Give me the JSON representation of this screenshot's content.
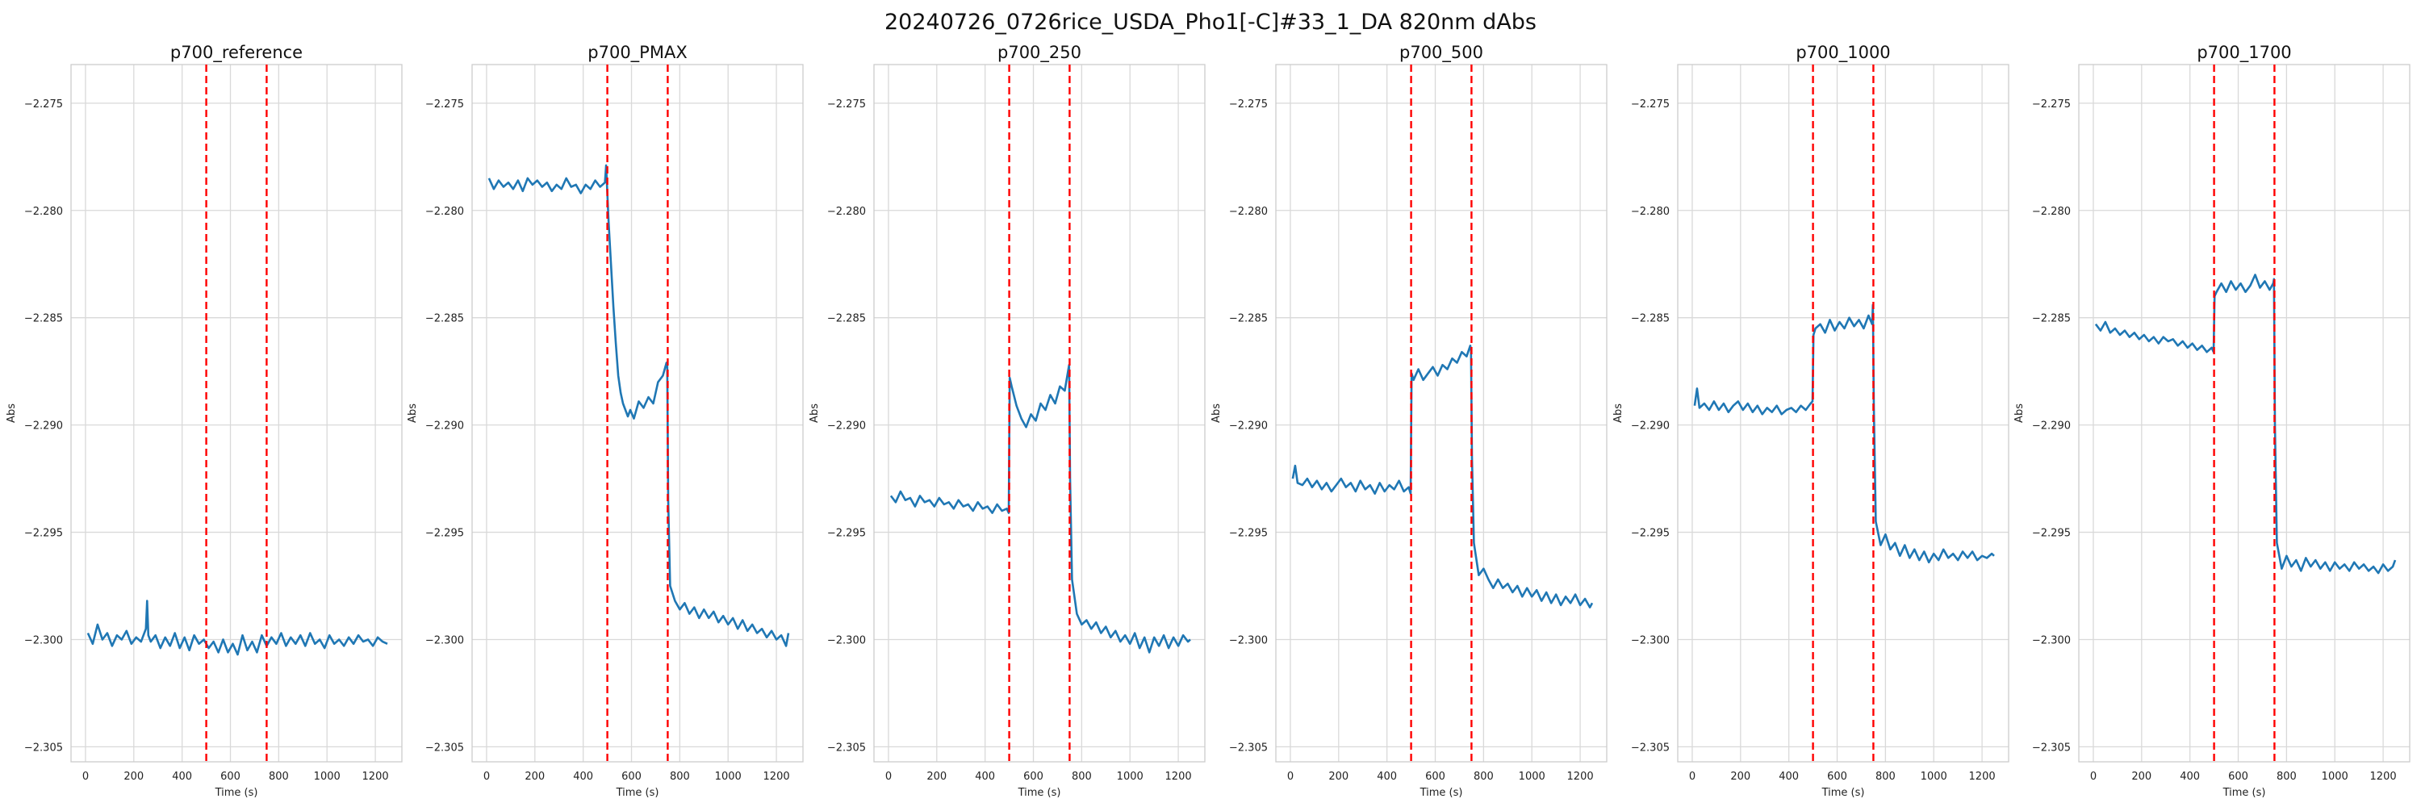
{
  "figure_title": "20240726_0726rice_USDA_Pho1[-C]#33_1_DA 820nm dAbs",
  "colors": {
    "series": "#1f77b4",
    "marker": "#ff0000",
    "grid": "#d9d9d9",
    "spine": "#cccccc"
  },
  "chart_data": [
    {
      "type": "line",
      "title": "p700_reference",
      "xlabel": "Time (s)",
      "ylabel": "Abs",
      "xlim": [
        -60,
        1310
      ],
      "ylim": [
        -2.3057,
        -2.2732
      ],
      "xticks": [
        0,
        200,
        400,
        600,
        800,
        1000,
        1200
      ],
      "yticks": [
        -2.275,
        -2.28,
        -2.285,
        -2.29,
        -2.295,
        -2.3,
        -2.305
      ],
      "vlines": [
        500,
        750
      ],
      "grid": true,
      "series": [
        {
          "x": [
            10,
            30,
            50,
            70,
            90,
            110,
            130,
            150,
            170,
            190,
            210,
            230,
            250,
            255,
            260,
            270,
            290,
            310,
            330,
            350,
            370,
            390,
            410,
            430,
            450,
            470,
            490,
            510,
            530,
            550,
            570,
            590,
            610,
            630,
            650,
            670,
            690,
            710,
            730,
            750,
            770,
            790,
            810,
            830,
            850,
            870,
            890,
            910,
            930,
            950,
            970,
            990,
            1010,
            1030,
            1050,
            1070,
            1090,
            1110,
            1130,
            1150,
            1170,
            1190,
            1210,
            1230,
            1250
          ],
          "y": [
            -2.2997,
            -2.3002,
            -2.2993,
            -2.3,
            -2.2997,
            -2.3003,
            -2.2998,
            -2.3,
            -2.2996,
            -2.3002,
            -2.2999,
            -2.3001,
            -2.2995,
            -2.2982,
            -2.2998,
            -2.3001,
            -2.2998,
            -2.3004,
            -2.2999,
            -2.3003,
            -2.2997,
            -2.3004,
            -2.2999,
            -2.3005,
            -2.2998,
            -2.3002,
            -2.3,
            -2.3004,
            -2.3001,
            -2.3006,
            -2.3,
            -2.3006,
            -2.3002,
            -2.3007,
            -2.2998,
            -2.3005,
            -2.3001,
            -2.3006,
            -2.2998,
            -2.3003,
            -2.2999,
            -2.3002,
            -2.2997,
            -2.3003,
            -2.2999,
            -2.3002,
            -2.2998,
            -2.3003,
            -2.2997,
            -2.3002,
            -2.3,
            -2.3004,
            -2.2998,
            -2.3002,
            -2.3,
            -2.3003,
            -2.2999,
            -2.3002,
            -2.2998,
            -2.3001,
            -2.3,
            -2.3003,
            -2.2999,
            -2.3001,
            -2.3002
          ]
        }
      ]
    },
    {
      "type": "line",
      "title": "p700_PMAX",
      "xlabel": "Time (s)",
      "ylabel": "Abs",
      "xlim": [
        -60,
        1310
      ],
      "ylim": [
        -2.3057,
        -2.2732
      ],
      "xticks": [
        0,
        200,
        400,
        600,
        800,
        1000,
        1200
      ],
      "yticks": [
        -2.275,
        -2.28,
        -2.285,
        -2.29,
        -2.295,
        -2.3,
        -2.305
      ],
      "vlines": [
        500,
        750
      ],
      "grid": true,
      "series": [
        {
          "x": [
            10,
            30,
            50,
            70,
            90,
            110,
            130,
            150,
            170,
            190,
            210,
            230,
            250,
            270,
            290,
            310,
            330,
            350,
            370,
            390,
            410,
            430,
            450,
            470,
            490,
            495,
            505,
            515,
            525,
            535,
            545,
            555,
            565,
            575,
            585,
            595,
            610,
            630,
            650,
            670,
            690,
            710,
            730,
            745,
            748,
            752,
            760,
            780,
            800,
            820,
            840,
            860,
            880,
            900,
            920,
            940,
            960,
            980,
            1000,
            1020,
            1040,
            1060,
            1080,
            1100,
            1120,
            1140,
            1160,
            1180,
            1200,
            1220,
            1240,
            1250
          ],
          "y": [
            -2.2785,
            -2.279,
            -2.2786,
            -2.2789,
            -2.2787,
            -2.279,
            -2.2786,
            -2.2791,
            -2.2785,
            -2.2788,
            -2.2786,
            -2.2789,
            -2.2787,
            -2.2791,
            -2.2788,
            -2.279,
            -2.2785,
            -2.2789,
            -2.2788,
            -2.2792,
            -2.2788,
            -2.279,
            -2.2786,
            -2.2789,
            -2.2787,
            -2.2779,
            -2.2805,
            -2.2825,
            -2.2845,
            -2.2862,
            -2.2877,
            -2.2885,
            -2.289,
            -2.2893,
            -2.2896,
            -2.2893,
            -2.2897,
            -2.2889,
            -2.2892,
            -2.2887,
            -2.289,
            -2.288,
            -2.2877,
            -2.2871,
            -2.2872,
            -2.2935,
            -2.2975,
            -2.2982,
            -2.2986,
            -2.2983,
            -2.2988,
            -2.2985,
            -2.299,
            -2.2986,
            -2.299,
            -2.2987,
            -2.2992,
            -2.2989,
            -2.2993,
            -2.299,
            -2.2995,
            -2.2991,
            -2.2996,
            -2.2993,
            -2.2997,
            -2.2995,
            -2.2999,
            -2.2996,
            -2.3,
            -2.2998,
            -2.3003,
            -2.2997
          ]
        }
      ]
    },
    {
      "type": "line",
      "title": "p700_250",
      "xlabel": "Time (s)",
      "ylabel": "Abs",
      "xlim": [
        -60,
        1310
      ],
      "ylim": [
        -2.3057,
        -2.2732
      ],
      "xticks": [
        0,
        200,
        400,
        600,
        800,
        1000,
        1200
      ],
      "yticks": [
        -2.275,
        -2.28,
        -2.285,
        -2.29,
        -2.295,
        -2.3,
        -2.305
      ],
      "vlines": [
        500,
        750
      ],
      "grid": true,
      "series": [
        {
          "x": [
            10,
            30,
            50,
            70,
            90,
            110,
            130,
            150,
            170,
            190,
            210,
            230,
            250,
            270,
            290,
            310,
            330,
            350,
            370,
            390,
            410,
            430,
            450,
            470,
            490,
            498,
            502,
            510,
            530,
            550,
            570,
            590,
            610,
            630,
            650,
            670,
            690,
            710,
            730,
            745,
            748,
            752,
            760,
            780,
            800,
            820,
            840,
            860,
            880,
            900,
            920,
            940,
            960,
            980,
            1000,
            1020,
            1040,
            1060,
            1080,
            1100,
            1120,
            1140,
            1160,
            1180,
            1200,
            1220,
            1240,
            1250
          ],
          "y": [
            -2.2933,
            -2.2936,
            -2.2931,
            -2.2935,
            -2.2934,
            -2.2938,
            -2.2933,
            -2.2936,
            -2.2935,
            -2.2938,
            -2.2934,
            -2.2937,
            -2.2936,
            -2.2939,
            -2.2935,
            -2.2938,
            -2.2937,
            -2.294,
            -2.2936,
            -2.2939,
            -2.2938,
            -2.2941,
            -2.2937,
            -2.294,
            -2.2939,
            -2.2941,
            -2.2878,
            -2.2882,
            -2.2891,
            -2.2897,
            -2.2901,
            -2.2895,
            -2.2898,
            -2.289,
            -2.2893,
            -2.2886,
            -2.289,
            -2.2882,
            -2.2884,
            -2.2874,
            -2.2872,
            -2.2925,
            -2.2972,
            -2.2988,
            -2.2993,
            -2.2991,
            -2.2995,
            -2.2992,
            -2.2997,
            -2.2994,
            -2.2999,
            -2.2996,
            -2.3001,
            -2.2998,
            -2.3002,
            -2.2997,
            -2.3004,
            -2.2999,
            -2.3006,
            -2.2999,
            -2.3003,
            -2.2998,
            -2.3004,
            -2.2999,
            -2.3003,
            -2.2998,
            -2.3001,
            -2.3
          ]
        }
      ]
    },
    {
      "type": "line",
      "title": "p700_500",
      "xlabel": "Time (s)",
      "ylabel": "Abs",
      "xlim": [
        -60,
        1310
      ],
      "ylim": [
        -2.3057,
        -2.2732
      ],
      "xticks": [
        0,
        200,
        400,
        600,
        800,
        1000,
        1200
      ],
      "yticks": [
        -2.275,
        -2.28,
        -2.285,
        -2.29,
        -2.295,
        -2.3,
        -2.305
      ],
      "vlines": [
        500,
        750
      ],
      "grid": true,
      "series": [
        {
          "x": [
            10,
            20,
            30,
            50,
            70,
            90,
            110,
            130,
            150,
            170,
            190,
            210,
            230,
            250,
            270,
            290,
            310,
            330,
            350,
            370,
            390,
            410,
            430,
            450,
            470,
            490,
            498,
            502,
            510,
            530,
            550,
            570,
            590,
            610,
            630,
            650,
            670,
            690,
            710,
            730,
            745,
            748,
            752,
            760,
            780,
            800,
            820,
            840,
            860,
            880,
            900,
            920,
            940,
            960,
            980,
            1000,
            1020,
            1040,
            1060,
            1080,
            1100,
            1120,
            1140,
            1160,
            1180,
            1200,
            1220,
            1240,
            1250
          ],
          "y": [
            -2.2925,
            -2.2919,
            -2.2927,
            -2.2928,
            -2.2925,
            -2.2929,
            -2.2926,
            -2.293,
            -2.2927,
            -2.2931,
            -2.2928,
            -2.2925,
            -2.2929,
            -2.2927,
            -2.2931,
            -2.2926,
            -2.293,
            -2.2928,
            -2.2932,
            -2.2927,
            -2.2931,
            -2.2928,
            -2.293,
            -2.2926,
            -2.2931,
            -2.2929,
            -2.2932,
            -2.2876,
            -2.2879,
            -2.2874,
            -2.2879,
            -2.2876,
            -2.2873,
            -2.2877,
            -2.2872,
            -2.2874,
            -2.2869,
            -2.2871,
            -2.2866,
            -2.2868,
            -2.2863,
            -2.2865,
            -2.2915,
            -2.2955,
            -2.297,
            -2.2967,
            -2.2972,
            -2.2976,
            -2.2972,
            -2.2976,
            -2.2974,
            -2.2978,
            -2.2975,
            -2.298,
            -2.2976,
            -2.298,
            -2.2977,
            -2.2982,
            -2.2978,
            -2.2983,
            -2.2979,
            -2.2984,
            -2.298,
            -2.2983,
            -2.2979,
            -2.2984,
            -2.2981,
            -2.2985,
            -2.2983
          ]
        }
      ]
    },
    {
      "type": "line",
      "title": "p700_1000",
      "xlabel": "Time (s)",
      "ylabel": "Abs",
      "xlim": [
        -60,
        1310
      ],
      "ylim": [
        -2.3057,
        -2.2732
      ],
      "xticks": [
        0,
        200,
        400,
        600,
        800,
        1000,
        1200
      ],
      "yticks": [
        -2.275,
        -2.28,
        -2.285,
        -2.29,
        -2.295,
        -2.3,
        -2.305
      ],
      "vlines": [
        500,
        750
      ],
      "grid": true,
      "series": [
        {
          "x": [
            10,
            20,
            30,
            50,
            70,
            90,
            110,
            130,
            150,
            170,
            190,
            210,
            230,
            250,
            270,
            290,
            310,
            330,
            350,
            370,
            390,
            410,
            430,
            450,
            470,
            490,
            498,
            502,
            510,
            530,
            550,
            570,
            590,
            610,
            630,
            650,
            670,
            690,
            710,
            730,
            745,
            748,
            752,
            760,
            780,
            800,
            820,
            840,
            860,
            880,
            900,
            920,
            940,
            960,
            980,
            1000,
            1020,
            1040,
            1060,
            1080,
            1100,
            1120,
            1140,
            1160,
            1180,
            1200,
            1220,
            1240,
            1250
          ],
          "y": [
            -2.2891,
            -2.2883,
            -2.2892,
            -2.289,
            -2.2893,
            -2.2889,
            -2.2893,
            -2.289,
            -2.2894,
            -2.2891,
            -2.2889,
            -2.2893,
            -2.289,
            -2.2894,
            -2.2891,
            -2.2895,
            -2.2892,
            -2.2894,
            -2.2891,
            -2.2895,
            -2.2893,
            -2.2892,
            -2.2894,
            -2.2891,
            -2.2893,
            -2.289,
            -2.2889,
            -2.2858,
            -2.2855,
            -2.2853,
            -2.2857,
            -2.2851,
            -2.2856,
            -2.2852,
            -2.2855,
            -2.285,
            -2.2854,
            -2.2851,
            -2.2855,
            -2.2849,
            -2.2853,
            -2.2844,
            -2.2892,
            -2.2945,
            -2.2956,
            -2.2951,
            -2.2958,
            -2.2955,
            -2.2961,
            -2.2956,
            -2.2962,
            -2.2958,
            -2.2963,
            -2.2959,
            -2.2964,
            -2.296,
            -2.2963,
            -2.2958,
            -2.2962,
            -2.296,
            -2.2963,
            -2.2959,
            -2.2962,
            -2.2959,
            -2.2963,
            -2.2961,
            -2.2962,
            -2.296,
            -2.2961
          ]
        }
      ]
    },
    {
      "type": "line",
      "title": "p700_1700",
      "xlabel": "Time (s)",
      "ylabel": "Abs",
      "xlim": [
        -60,
        1310
      ],
      "ylim": [
        -2.3057,
        -2.2732
      ],
      "xticks": [
        0,
        200,
        400,
        600,
        800,
        1000,
        1200
      ],
      "yticks": [
        -2.275,
        -2.28,
        -2.285,
        -2.29,
        -2.295,
        -2.3,
        -2.305
      ],
      "vlines": [
        500,
        750
      ],
      "grid": true,
      "series": [
        {
          "x": [
            10,
            30,
            50,
            70,
            90,
            110,
            130,
            150,
            170,
            190,
            210,
            230,
            250,
            270,
            290,
            310,
            330,
            350,
            370,
            390,
            410,
            430,
            450,
            470,
            490,
            498,
            502,
            510,
            530,
            550,
            570,
            590,
            610,
            630,
            650,
            670,
            690,
            710,
            730,
            745,
            748,
            752,
            760,
            780,
            800,
            820,
            840,
            860,
            880,
            900,
            920,
            940,
            960,
            980,
            1000,
            1020,
            1040,
            1060,
            1080,
            1100,
            1120,
            1140,
            1160,
            1180,
            1200,
            1220,
            1240,
            1250
          ],
          "y": [
            -2.2853,
            -2.2856,
            -2.2852,
            -2.2857,
            -2.2855,
            -2.2858,
            -2.2856,
            -2.2859,
            -2.2857,
            -2.286,
            -2.2858,
            -2.2861,
            -2.2859,
            -2.2862,
            -2.2859,
            -2.2861,
            -2.286,
            -2.2863,
            -2.2861,
            -2.2864,
            -2.2862,
            -2.2865,
            -2.2863,
            -2.2866,
            -2.2864,
            -2.2866,
            -2.284,
            -2.2838,
            -2.2834,
            -2.2838,
            -2.2833,
            -2.2837,
            -2.2834,
            -2.2838,
            -2.2835,
            -2.283,
            -2.2836,
            -2.2833,
            -2.2837,
            -2.2834,
            -2.2832,
            -2.29,
            -2.2955,
            -2.2967,
            -2.2961,
            -2.2966,
            -2.2963,
            -2.2968,
            -2.2962,
            -2.2966,
            -2.2963,
            -2.2967,
            -2.2964,
            -2.2968,
            -2.2964,
            -2.2967,
            -2.2965,
            -2.2968,
            -2.2964,
            -2.2967,
            -2.2965,
            -2.2968,
            -2.2966,
            -2.2969,
            -2.2965,
            -2.2968,
            -2.2966,
            -2.2963
          ]
        }
      ]
    }
  ]
}
